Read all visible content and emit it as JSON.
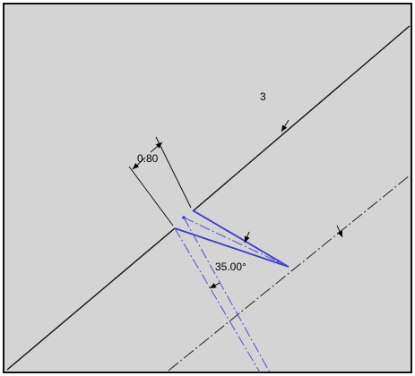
{
  "dimensions": {
    "thickness": "3",
    "offset": "0.80",
    "angle": "35.00°"
  }
}
